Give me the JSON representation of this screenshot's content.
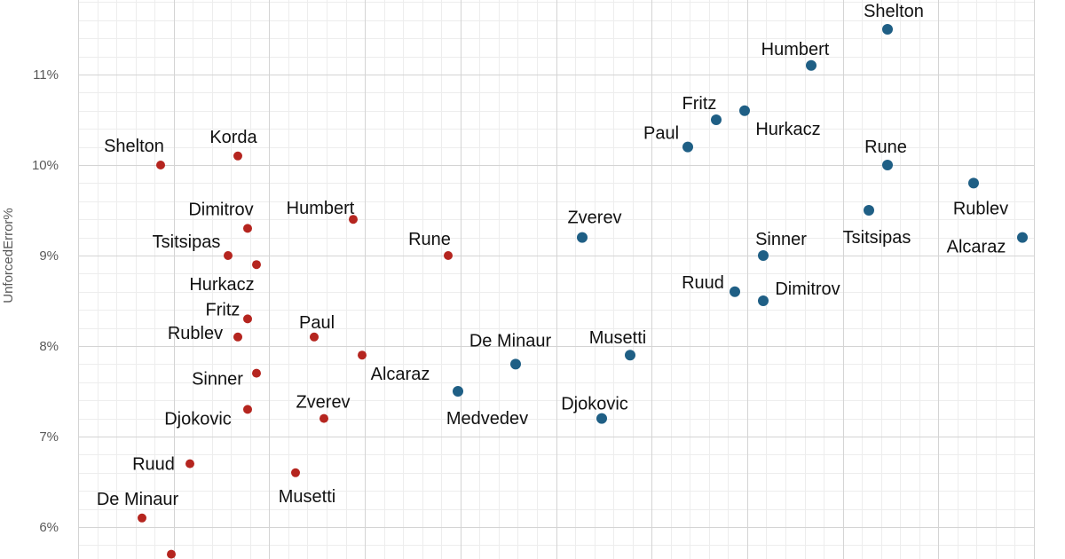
{
  "chart_data": {
    "type": "scatter",
    "title": "",
    "xlabel": "",
    "ylabel": "UnforcedError%",
    "y_unit": "%",
    "ylim": [
      5.7,
      11.8
    ],
    "yticks": [
      6,
      7,
      8,
      9,
      10,
      11
    ],
    "grid": true,
    "legend": "none",
    "series": [
      {
        "color": "#b5251f",
        "points": [
          {
            "label": "Shelton",
            "y": 10.0
          },
          {
            "label": "Korda",
            "y": 10.1
          },
          {
            "label": "Dimitrov",
            "y": 9.3
          },
          {
            "label": "Humbert",
            "y": 9.4
          },
          {
            "label": "Tsitsipas",
            "y": 9.0
          },
          {
            "label": "Hurkacz",
            "y": 8.9
          },
          {
            "label": "Rune",
            "y": 9.0
          },
          {
            "label": "Fritz",
            "y": 8.3
          },
          {
            "label": "Rublev",
            "y": 8.1
          },
          {
            "label": "Paul",
            "y": 8.1
          },
          {
            "label": "Alcaraz",
            "y": 7.9
          },
          {
            "label": "Sinner",
            "y": 7.7
          },
          {
            "label": "Djokovic",
            "y": 7.3
          },
          {
            "label": "Zverev",
            "y": 7.2
          },
          {
            "label": "Ruud",
            "y": 6.7
          },
          {
            "label": "Musetti",
            "y": 6.6
          },
          {
            "label": "De Minaur",
            "y": 6.1
          },
          {
            "label": "",
            "y": 5.7
          }
        ]
      },
      {
        "color": "#1f5f85",
        "points": [
          {
            "label": "Shelton",
            "y": 11.5
          },
          {
            "label": "Humbert",
            "y": 11.1
          },
          {
            "label": "Fritz",
            "y": 10.5
          },
          {
            "label": "Hurkacz",
            "y": 10.6
          },
          {
            "label": "Paul",
            "y": 10.2
          },
          {
            "label": "Rune",
            "y": 10.0
          },
          {
            "label": "Rublev",
            "y": 9.8
          },
          {
            "label": "Tsitsipas",
            "y": 9.5
          },
          {
            "label": "Zverev",
            "y": 9.2
          },
          {
            "label": "Alcaraz",
            "y": 9.2
          },
          {
            "label": "Sinner",
            "y": 9.0
          },
          {
            "label": "Ruud",
            "y": 8.6
          },
          {
            "label": "Dimitrov",
            "y": 8.5
          },
          {
            "label": "De Minaur",
            "y": 7.8
          },
          {
            "label": "Musetti",
            "y": 7.9
          },
          {
            "label": "Medvedev",
            "y": 7.5
          },
          {
            "label": "Djokovic",
            "y": 7.2
          }
        ]
      }
    ]
  }
}
